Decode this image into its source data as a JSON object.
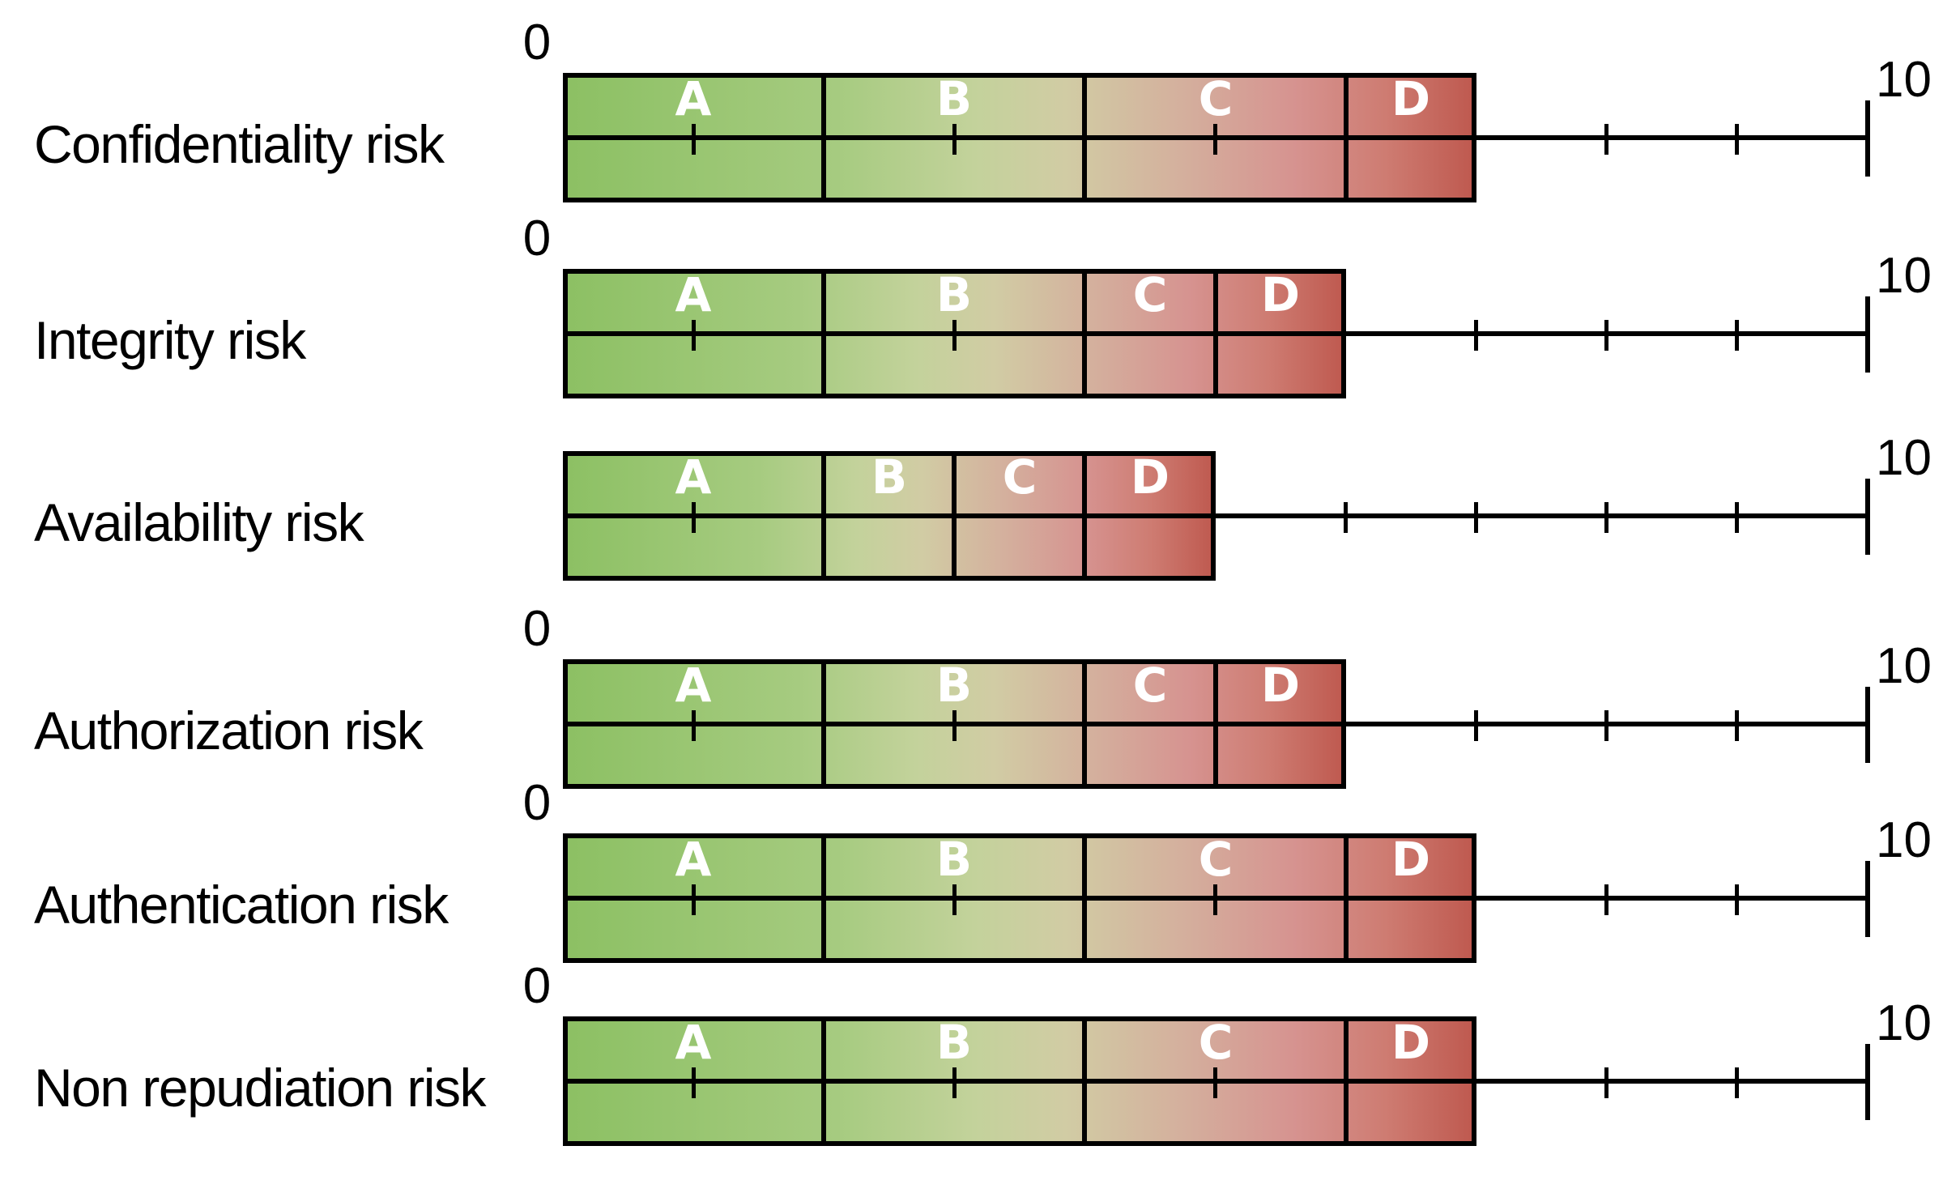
{
  "axis": {
    "min_label": "0",
    "max_label": "10"
  },
  "chart_data": {
    "type": "bar",
    "subtype": "interval-risk-scale",
    "title": "",
    "xlabel": "",
    "ylabel": "",
    "xlim": [
      0,
      10
    ],
    "tick_step": 1,
    "grid": false,
    "legend": false,
    "categories": [
      "Confidentiality risk",
      "Integrity risk",
      "Availability risk",
      "Authorization risk",
      "Authentication risk",
      "Non repudiation risk"
    ],
    "segment_labels": [
      "A",
      "B",
      "C",
      "D"
    ],
    "rows": [
      {
        "label": "Confidentiality risk",
        "show_zero_label": true,
        "bar_end": 7,
        "segments": [
          {
            "name": "A",
            "from": 0,
            "to": 2
          },
          {
            "name": "B",
            "from": 2,
            "to": 4
          },
          {
            "name": "C",
            "from": 4,
            "to": 6
          },
          {
            "name": "D",
            "from": 6,
            "to": 7
          }
        ]
      },
      {
        "label": "Integrity risk",
        "show_zero_label": true,
        "bar_end": 6,
        "segments": [
          {
            "name": "A",
            "from": 0,
            "to": 2
          },
          {
            "name": "B",
            "from": 2,
            "to": 4
          },
          {
            "name": "C",
            "from": 4,
            "to": 5
          },
          {
            "name": "D",
            "from": 5,
            "to": 6
          }
        ]
      },
      {
        "label": "Availability risk",
        "show_zero_label": false,
        "bar_end": 5,
        "segments": [
          {
            "name": "A",
            "from": 0,
            "to": 2
          },
          {
            "name": "B",
            "from": 2,
            "to": 3
          },
          {
            "name": "C",
            "from": 3,
            "to": 4
          },
          {
            "name": "D",
            "from": 4,
            "to": 5
          }
        ]
      },
      {
        "label": "Authorization risk",
        "show_zero_label": true,
        "bar_end": 6,
        "segments": [
          {
            "name": "A",
            "from": 0,
            "to": 2
          },
          {
            "name": "B",
            "from": 2,
            "to": 4
          },
          {
            "name": "C",
            "from": 4,
            "to": 5
          },
          {
            "name": "D",
            "from": 5,
            "to": 6
          }
        ]
      },
      {
        "label": "Authentication risk",
        "show_zero_label": true,
        "bar_end": 7,
        "segments": [
          {
            "name": "A",
            "from": 0,
            "to": 2
          },
          {
            "name": "B",
            "from": 2,
            "to": 4
          },
          {
            "name": "C",
            "from": 4,
            "to": 6
          },
          {
            "name": "D",
            "from": 6,
            "to": 7
          }
        ]
      },
      {
        "label": "Non repudiation risk",
        "show_zero_label": true,
        "bar_end": 7,
        "segments": [
          {
            "name": "A",
            "from": 0,
            "to": 2
          },
          {
            "name": "B",
            "from": 2,
            "to": 4
          },
          {
            "name": "C",
            "from": 4,
            "to": 6
          },
          {
            "name": "D",
            "from": 6,
            "to": 7
          }
        ]
      }
    ],
    "colors": {
      "gradient": [
        "#8CC063",
        "#A6CB80",
        "#C3D29B",
        "#D1CCA4",
        "#D4AF9D",
        "#D69390",
        "#CE7C72",
        "#BE584E"
      ],
      "gradient_positions": [
        0,
        0.3,
        0.45,
        0.55,
        0.68,
        0.8,
        0.9,
        1.0
      ],
      "line": "#000000",
      "segment_letter": "#FFFFFF",
      "text": "#000000",
      "background": "#FFFFFF"
    }
  }
}
